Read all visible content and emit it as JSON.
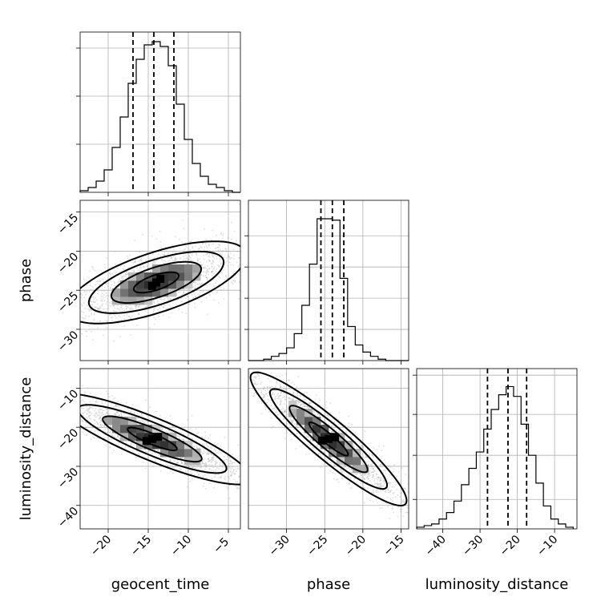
{
  "chart_data": {
    "type": "corner",
    "parameters": [
      {
        "name": "geocent_time",
        "label": "geocent_time",
        "range": [
          -23.5,
          -3.5
        ],
        "ticks": [
          -20,
          -15,
          -10,
          -5
        ],
        "tick_labels": [
          "−20",
          "−15",
          "−10",
          "−5"
        ],
        "quantiles": [
          -16.9,
          -14.3,
          -11.8
        ],
        "hist": {
          "bin_edges": [
            -23.5,
            -22.5,
            -21.5,
            -20.5,
            -19.5,
            -18.5,
            -17.5,
            -16.5,
            -15.5,
            -14.5,
            -13.5,
            -12.5,
            -11.5,
            -10.5,
            -9.5,
            -8.5,
            -7.5,
            -6.5,
            -5.5,
            -4.5,
            -3.5
          ],
          "counts": [
            1,
            3,
            7,
            14,
            28,
            47,
            68,
            83,
            92,
            94,
            91,
            79,
            55,
            33,
            18,
            10,
            5,
            3,
            1,
            0
          ],
          "ymax": 100,
          "grid_levels": [
            30,
            60,
            90
          ]
        }
      },
      {
        "name": "phase",
        "label": "phase",
        "range": [
          -35,
          -14
        ],
        "ticks": [
          -30,
          -25,
          -20,
          -15
        ],
        "tick_labels": [
          "−30",
          "−25",
          "−20",
          "−15"
        ],
        "quantiles": [
          -25.5,
          -24,
          -22.5
        ],
        "hist": {
          "bin_edges": [
            -35,
            -34,
            -33,
            -32,
            -31,
            -30,
            -29,
            -28,
            -27,
            -26,
            -25,
            -24,
            -23,
            -22,
            -21,
            -20,
            -19,
            -18,
            -17,
            -16,
            -15,
            -14
          ],
          "counts": [
            0,
            0,
            1,
            3,
            5,
            9,
            19,
            39,
            68,
            100,
            100,
            99,
            58,
            24,
            11,
            6,
            3,
            1,
            0,
            0,
            0
          ],
          "ymax": 113,
          "grid_levels": [
            22,
            44,
            66,
            88
          ]
        }
      },
      {
        "name": "luminosity_distance",
        "label": "luminosity_distance",
        "range": [
          -47,
          -4
        ],
        "ticks": [
          -40,
          -30,
          -20,
          -10
        ],
        "tick_labels": [
          "−40",
          "−30",
          "−20",
          "−10"
        ],
        "quantiles": [
          -28,
          -22.5,
          -17.5
        ],
        "hist": {
          "bin_edges": [
            -47,
            -45,
            -43,
            -41,
            -39,
            -37,
            -35,
            -33,
            -31,
            -29,
            -27,
            -25,
            -23,
            -21,
            -19,
            -17,
            -15,
            -13,
            -11,
            -9,
            -7,
            -5
          ],
          "counts": [
            1,
            2,
            3,
            6,
            10,
            17,
            27,
            37,
            47,
            61,
            73,
            82,
            87,
            81,
            64,
            45,
            28,
            14,
            6,
            3,
            1
          ],
          "ymax": 98,
          "grid_levels": [
            18,
            45,
            70,
            94
          ]
        }
      }
    ],
    "panels": [
      {
        "row": 1,
        "col": 0,
        "x": "geocent_time",
        "y": "phase",
        "y_range": [
          -34,
          -13.5
        ],
        "y_ticks": [
          -30,
          -25,
          -20,
          -15
        ],
        "y_tick_labels": [
          "−30",
          "−25",
          "−20",
          "−15"
        ],
        "center": [
          -14,
          -24
        ],
        "rotation_deg": 19,
        "semi_axes": [
          5.9,
          1.9
        ]
      },
      {
        "row": 2,
        "col": 0,
        "x": "geocent_time",
        "y": "luminosity_distance",
        "y_range": [
          -46,
          -5
        ],
        "y_ticks": [
          -40,
          -30,
          -20,
          -10
        ],
        "y_tick_labels": [
          "−40",
          "−30",
          "−20",
          "−10"
        ],
        "center": [
          -14.5,
          -23
        ],
        "rotation_deg": -43,
        "semi_axes": [
          8.2,
          2.2
        ]
      },
      {
        "row": 2,
        "col": 1,
        "x": "phase",
        "y": "luminosity_distance",
        "y_range": [
          -46,
          -5
        ],
        "y_ticks": [
          -40,
          -30,
          -20,
          -10
        ],
        "y_tick_labels": [
          "−40",
          "−30",
          "−20",
          "−10"
        ],
        "center": [
          -24.5,
          -23
        ],
        "rotation_deg": -60,
        "semi_axes": [
          9.8,
          1.7
        ]
      }
    ],
    "contour_levels_sigma": [
      0.5,
      1.0,
      1.5,
      2.0
    ],
    "grid": true,
    "title": ""
  }
}
